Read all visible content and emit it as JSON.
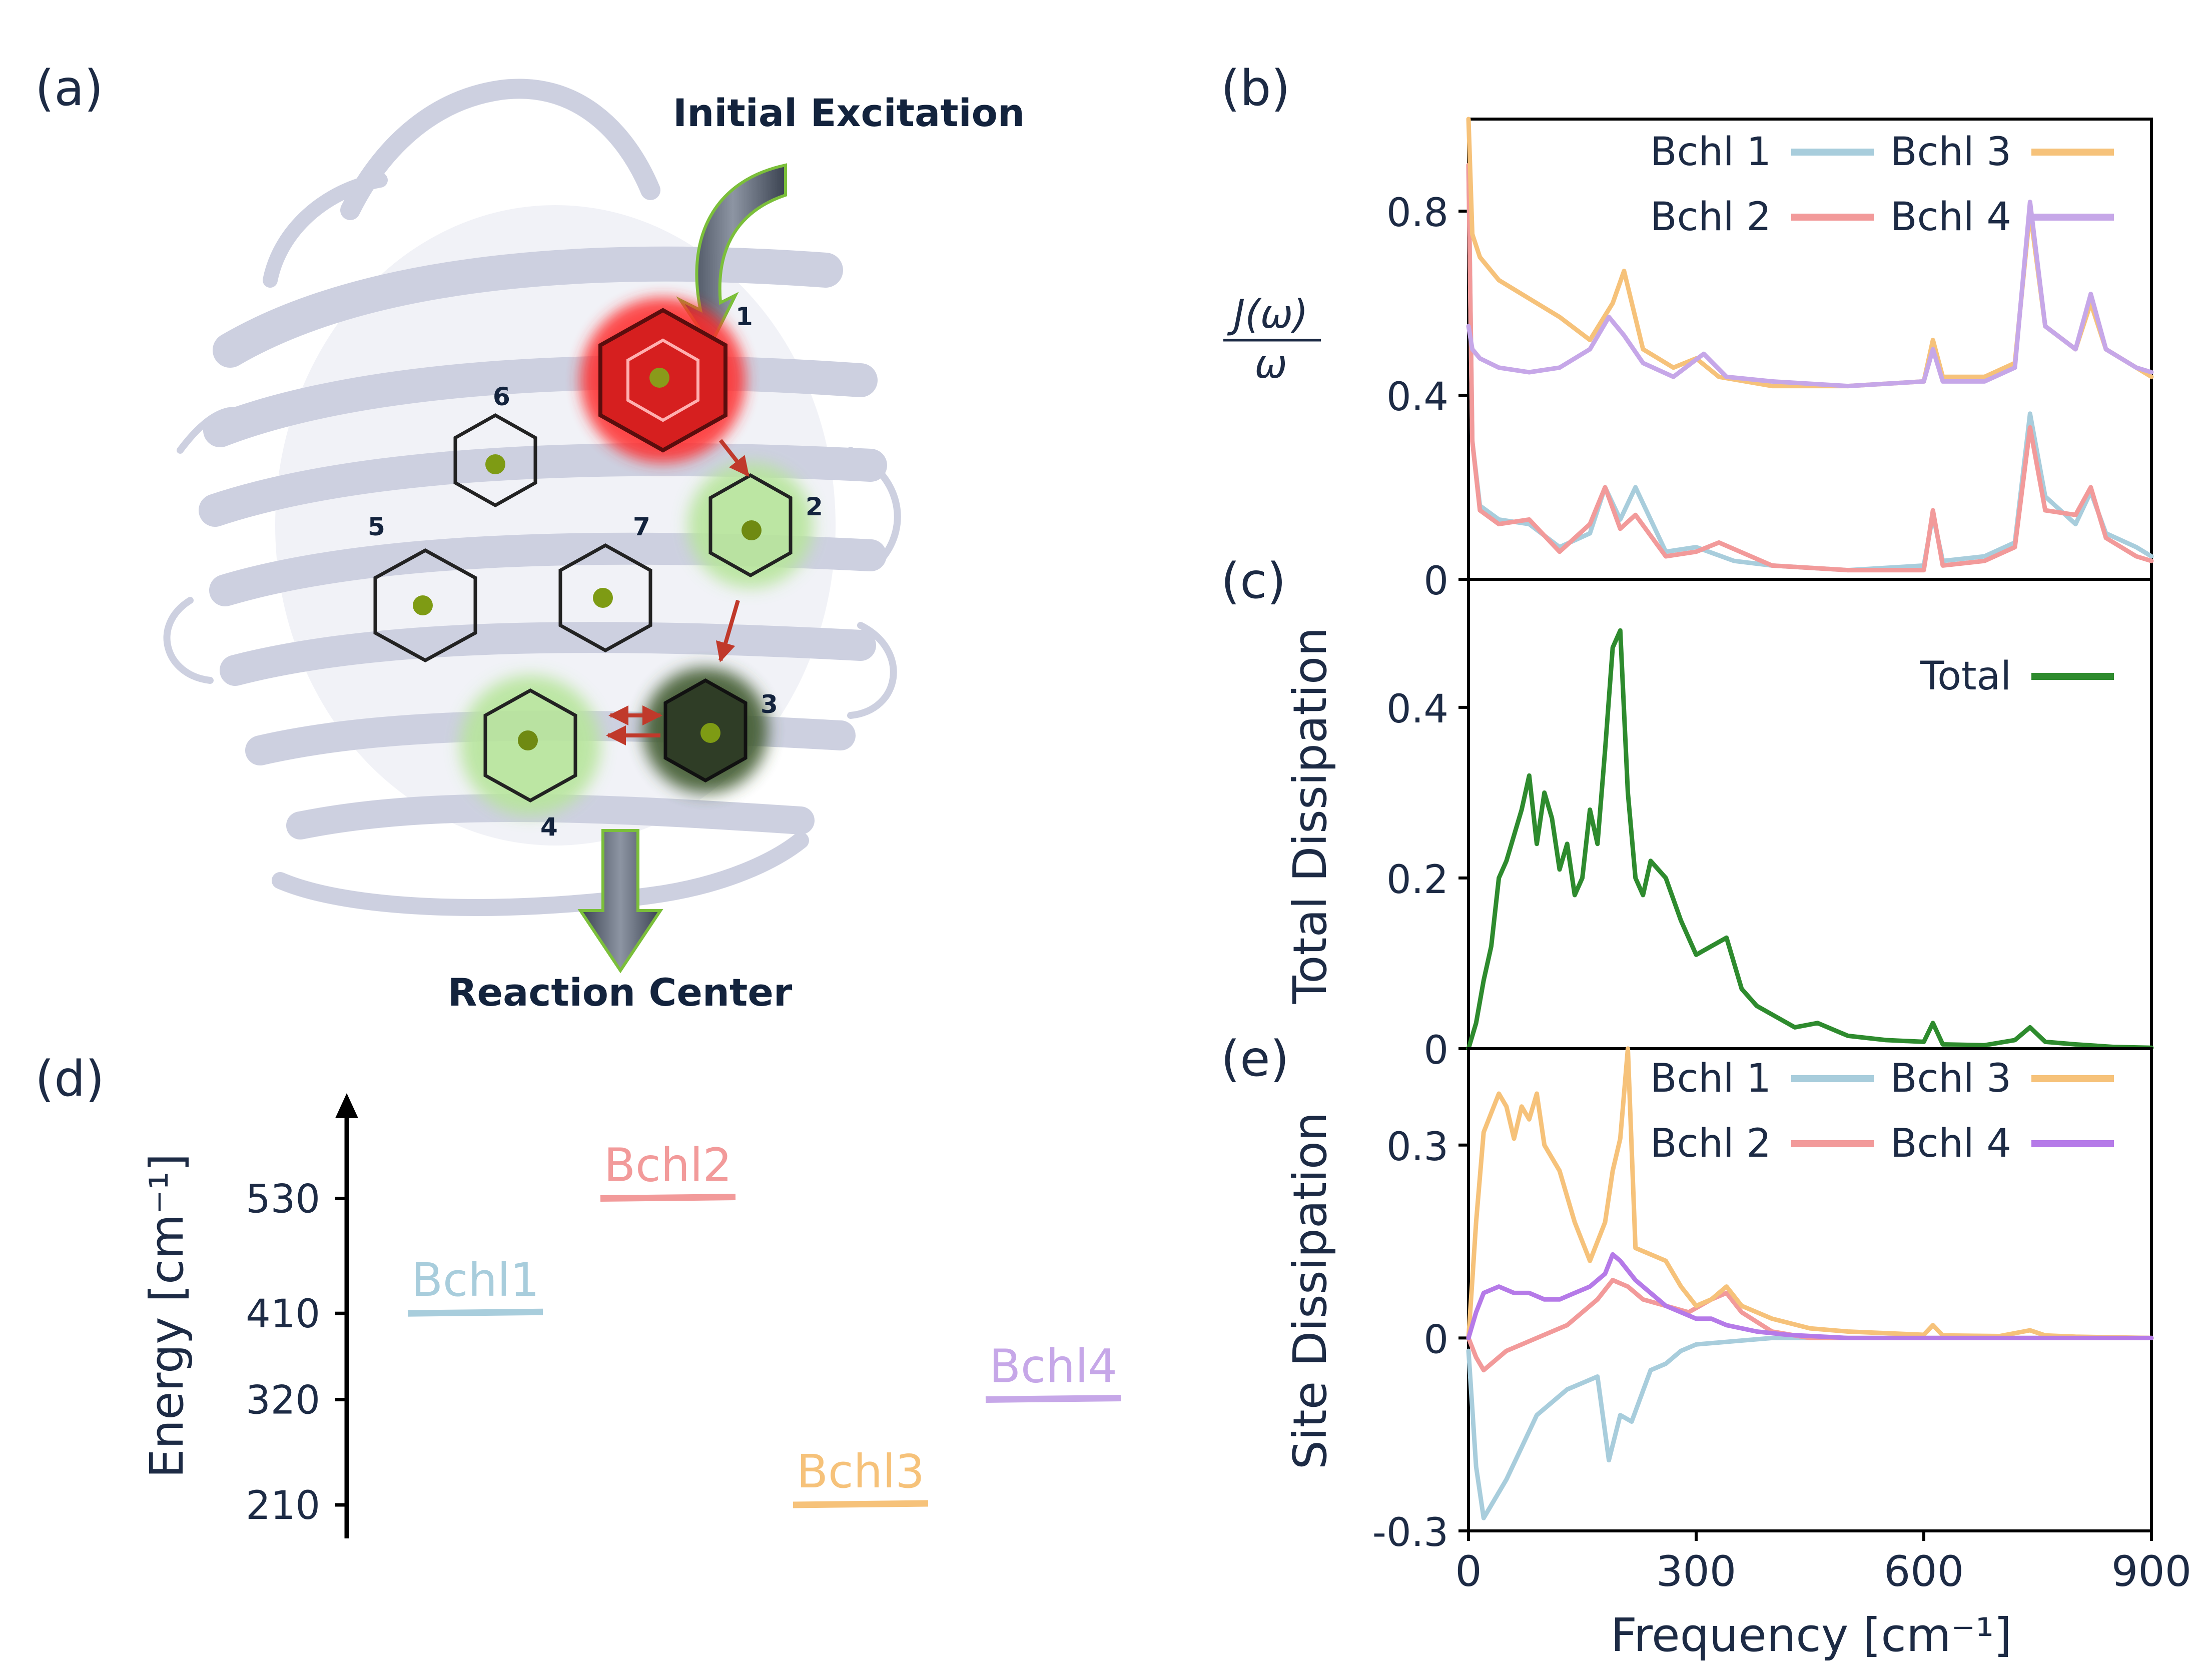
{
  "colors": {
    "bchl1": "#a8cddc",
    "bchl2": "#f29a9a",
    "bchl3": "#f6c27a",
    "bchl4": "#c6a7e8",
    "total": "#2e8b2e",
    "text": "#1d2b45",
    "protein": "#c9ccdd",
    "bchl4_site": "#b57ae8"
  },
  "panel_a": {
    "label": "(a)",
    "initial_excitation": "Initial Excitation",
    "reaction_center": "Reaction Center",
    "site_numbers": [
      "1",
      "2",
      "3",
      "4",
      "5",
      "6",
      "7"
    ]
  },
  "chart_data": [
    {
      "id": "b",
      "type": "line",
      "panel_label": "(b)",
      "ylabel": "J(ω) / ω",
      "ylabel_num": "J(ω)",
      "ylabel_den": "ω",
      "xlim": [
        0,
        900
      ],
      "ylim": [
        0,
        1.0
      ],
      "yticks": [
        0,
        0.4,
        0.8
      ],
      "ytick_labels": [
        "0",
        "0.4",
        "0.8"
      ],
      "legend": [
        "Bchl 1",
        "Bchl 2",
        "Bchl 3",
        "Bchl 4"
      ],
      "legend_position": "top-right",
      "series": [
        {
          "name": "Bchl 1",
          "color_key": "bchl1",
          "x": [
            0,
            5,
            15,
            40,
            80,
            120,
            160,
            180,
            200,
            220,
            260,
            300,
            350,
            400,
            500,
            600,
            612,
            625,
            680,
            720,
            740,
            760,
            800,
            820,
            840,
            880,
            900
          ],
          "y": [
            0.9,
            0.3,
            0.16,
            0.13,
            0.12,
            0.07,
            0.1,
            0.2,
            0.13,
            0.2,
            0.06,
            0.07,
            0.04,
            0.03,
            0.02,
            0.03,
            0.14,
            0.04,
            0.05,
            0.08,
            0.36,
            0.18,
            0.12,
            0.19,
            0.1,
            0.07,
            0.05
          ]
        },
        {
          "name": "Bchl 2",
          "color_key": "bchl2",
          "x": [
            0,
            5,
            15,
            40,
            80,
            120,
            160,
            180,
            200,
            220,
            260,
            300,
            330,
            400,
            500,
            600,
            612,
            625,
            680,
            720,
            740,
            760,
            800,
            820,
            840,
            880,
            900
          ],
          "y": [
            0.9,
            0.3,
            0.15,
            0.12,
            0.13,
            0.06,
            0.12,
            0.2,
            0.11,
            0.14,
            0.05,
            0.06,
            0.08,
            0.03,
            0.02,
            0.02,
            0.15,
            0.03,
            0.04,
            0.07,
            0.33,
            0.15,
            0.14,
            0.2,
            0.09,
            0.05,
            0.04
          ]
        },
        {
          "name": "Bchl 3",
          "color_key": "bchl3",
          "x": [
            0,
            5,
            15,
            40,
            80,
            120,
            160,
            190,
            205,
            230,
            270,
            300,
            330,
            400,
            500,
            600,
            612,
            625,
            680,
            720,
            740,
            760,
            800,
            820,
            840,
            880,
            900
          ],
          "y": [
            1.0,
            0.75,
            0.7,
            0.65,
            0.61,
            0.57,
            0.52,
            0.6,
            0.67,
            0.5,
            0.46,
            0.48,
            0.44,
            0.42,
            0.42,
            0.43,
            0.52,
            0.44,
            0.44,
            0.47,
            0.8,
            0.55,
            0.5,
            0.6,
            0.5,
            0.46,
            0.44
          ]
        },
        {
          "name": "Bchl 4",
          "color_key": "bchl4",
          "x": [
            0,
            5,
            15,
            40,
            80,
            120,
            160,
            185,
            205,
            230,
            270,
            310,
            340,
            400,
            500,
            600,
            612,
            625,
            680,
            720,
            740,
            760,
            800,
            820,
            840,
            880,
            900
          ],
          "y": [
            0.55,
            0.5,
            0.48,
            0.46,
            0.45,
            0.46,
            0.5,
            0.57,
            0.53,
            0.47,
            0.44,
            0.49,
            0.44,
            0.43,
            0.42,
            0.43,
            0.5,
            0.43,
            0.43,
            0.46,
            0.82,
            0.55,
            0.5,
            0.62,
            0.5,
            0.46,
            0.45
          ]
        }
      ]
    },
    {
      "id": "c",
      "type": "line",
      "panel_label": "(c)",
      "ylabel": "Total Dissipation",
      "xlim": [
        0,
        900
      ],
      "ylim": [
        0,
        0.55
      ],
      "yticks": [
        0,
        0.2,
        0.4
      ],
      "ytick_labels": [
        "0",
        "0.2",
        "0.4"
      ],
      "legend": [
        "Total"
      ],
      "legend_position": "top-right",
      "series": [
        {
          "name": "Total",
          "color_key": "total",
          "x": [
            0,
            10,
            20,
            30,
            40,
            50,
            60,
            70,
            80,
            90,
            100,
            110,
            120,
            130,
            140,
            150,
            160,
            170,
            180,
            190,
            200,
            210,
            220,
            230,
            240,
            260,
            280,
            300,
            320,
            340,
            360,
            380,
            400,
            430,
            460,
            500,
            550,
            600,
            612,
            625,
            680,
            720,
            740,
            760,
            800,
            850,
            900
          ],
          "y": [
            0,
            0.03,
            0.08,
            0.12,
            0.2,
            0.22,
            0.25,
            0.28,
            0.32,
            0.24,
            0.3,
            0.27,
            0.21,
            0.24,
            0.18,
            0.2,
            0.28,
            0.24,
            0.35,
            0.47,
            0.49,
            0.3,
            0.2,
            0.18,
            0.22,
            0.2,
            0.15,
            0.11,
            0.12,
            0.13,
            0.07,
            0.05,
            0.04,
            0.025,
            0.03,
            0.015,
            0.01,
            0.008,
            0.03,
            0.005,
            0.004,
            0.01,
            0.025,
            0.008,
            0.005,
            0.002,
            0.001
          ]
        }
      ]
    },
    {
      "id": "e",
      "type": "line",
      "panel_label": "(e)",
      "ylabel": "Site Dissipation",
      "xlabel": "Frequency [cm⁻¹]",
      "xlim": [
        0,
        900
      ],
      "ylim": [
        -0.3,
        0.45
      ],
      "xticks": [
        0,
        300,
        600,
        900
      ],
      "xtick_labels": [
        "0",
        "300",
        "600",
        "900"
      ],
      "yticks": [
        -0.3,
        0,
        0.3
      ],
      "ytick_labels": [
        "-0.3",
        "0",
        "0.3"
      ],
      "legend": [
        "Bchl 1",
        "Bchl 2",
        "Bchl 3",
        "Bchl 4"
      ],
      "legend_position": "top-right",
      "series": [
        {
          "name": "Bchl 1",
          "color_key": "bchl1",
          "x": [
            0,
            10,
            20,
            30,
            50,
            70,
            90,
            110,
            130,
            150,
            170,
            185,
            200,
            215,
            240,
            260,
            280,
            300,
            350,
            400,
            450,
            500,
            600,
            700,
            800,
            900
          ],
          "y": [
            -0.02,
            -0.2,
            -0.28,
            -0.26,
            -0.22,
            -0.17,
            -0.12,
            -0.1,
            -0.08,
            -0.07,
            -0.06,
            -0.19,
            -0.12,
            -0.13,
            -0.05,
            -0.04,
            -0.02,
            -0.01,
            -0.005,
            0,
            0,
            0,
            0,
            0,
            0,
            0
          ]
        },
        {
          "name": "Bchl 2",
          "color_key": "bchl2",
          "x": [
            0,
            10,
            20,
            30,
            50,
            70,
            90,
            110,
            130,
            150,
            170,
            190,
            210,
            230,
            260,
            290,
            320,
            340,
            360,
            400,
            450,
            500,
            600,
            700,
            800,
            900
          ],
          "y": [
            0,
            -0.03,
            -0.05,
            -0.04,
            -0.02,
            -0.01,
            0,
            0.01,
            0.02,
            0.04,
            0.06,
            0.09,
            0.08,
            0.06,
            0.05,
            0.04,
            0.06,
            0.07,
            0.04,
            0.01,
            0,
            0,
            0,
            0,
            0,
            0
          ]
        },
        {
          "name": "Bchl 3",
          "color_key": "bchl3",
          "x": [
            0,
            10,
            20,
            30,
            40,
            50,
            60,
            70,
            80,
            90,
            100,
            120,
            140,
            160,
            180,
            190,
            200,
            210,
            220,
            240,
            260,
            280,
            300,
            320,
            340,
            360,
            400,
            450,
            500,
            600,
            612,
            625,
            700,
            740,
            760,
            800,
            900
          ],
          "y": [
            0,
            0.18,
            0.32,
            0.35,
            0.38,
            0.36,
            0.31,
            0.36,
            0.34,
            0.38,
            0.3,
            0.26,
            0.18,
            0.12,
            0.18,
            0.26,
            0.31,
            0.45,
            0.14,
            0.13,
            0.12,
            0.08,
            0.05,
            0.06,
            0.08,
            0.05,
            0.03,
            0.015,
            0.01,
            0.005,
            0.02,
            0.004,
            0.003,
            0.012,
            0.004,
            0.002,
            0
          ]
        },
        {
          "name": "Bchl 4",
          "color_key": "bchl4_site",
          "x": [
            0,
            10,
            20,
            40,
            60,
            80,
            100,
            120,
            140,
            160,
            180,
            190,
            200,
            220,
            240,
            260,
            280,
            300,
            320,
            340,
            380,
            420,
            500,
            600,
            700,
            800,
            900
          ],
          "y": [
            0,
            0.04,
            0.07,
            0.08,
            0.07,
            0.07,
            0.06,
            0.06,
            0.07,
            0.08,
            0.1,
            0.13,
            0.12,
            0.09,
            0.07,
            0.05,
            0.04,
            0.03,
            0.03,
            0.02,
            0.01,
            0.005,
            0,
            0,
            0,
            0,
            0
          ]
        }
      ]
    },
    {
      "id": "d",
      "type": "scatter",
      "panel_label": "(d)",
      "ylabel": "Energy [cm⁻¹]",
      "ylim": [
        175,
        640
      ],
      "yticks": [
        210,
        320,
        410,
        530
      ],
      "ytick_labels": [
        "210",
        "320",
        "410",
        "530"
      ],
      "levels": [
        {
          "name": "Bchl1",
          "energy": 410,
          "color_key": "bchl1",
          "order": 0
        },
        {
          "name": "Bchl2",
          "energy": 530,
          "color_key": "bchl2",
          "order": 1
        },
        {
          "name": "Bchl3",
          "energy": 210,
          "color_key": "bchl3",
          "order": 2
        },
        {
          "name": "Bchl4",
          "energy": 320,
          "color_key": "bchl4",
          "order": 3
        }
      ]
    }
  ]
}
